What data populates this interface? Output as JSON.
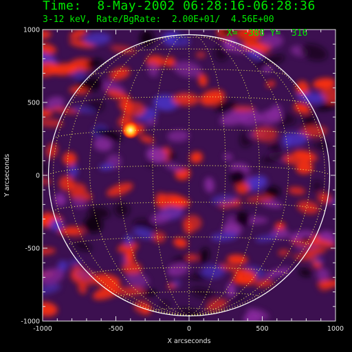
{
  "header": {
    "time_line": "Time:  8-May-2002 06:28:16-06:28:36",
    "rate_line": "3-12 keV, Rate/BgRate:  2.00E+01/  4.56E+00",
    "cursor_line": "X= -388 Y=  316"
  },
  "axes": {
    "x_label": "X arcseconds",
    "y_label": "Y arcseconds",
    "x_ticks": [
      "-1000",
      "-500",
      "0",
      "500",
      "1000"
    ],
    "y_ticks": [
      "1000",
      "500",
      "0",
      "-500",
      "-1000"
    ],
    "x_range": [
      -1000,
      1000
    ],
    "y_range": [
      -1000,
      1000
    ]
  },
  "colors": {
    "header_text": "#00e800",
    "limb": "#ffffff",
    "grid": "#ffff66",
    "background_field": "#3c1050",
    "hot": "#ff3010",
    "cool": "#4a30c0"
  },
  "image": {
    "description_type": "x-ray solar full-disk reconstruction",
    "solar_radius_arcsec": 960,
    "heliographic_grid": true,
    "bright_source": [
      -400,
      310
    ]
  }
}
